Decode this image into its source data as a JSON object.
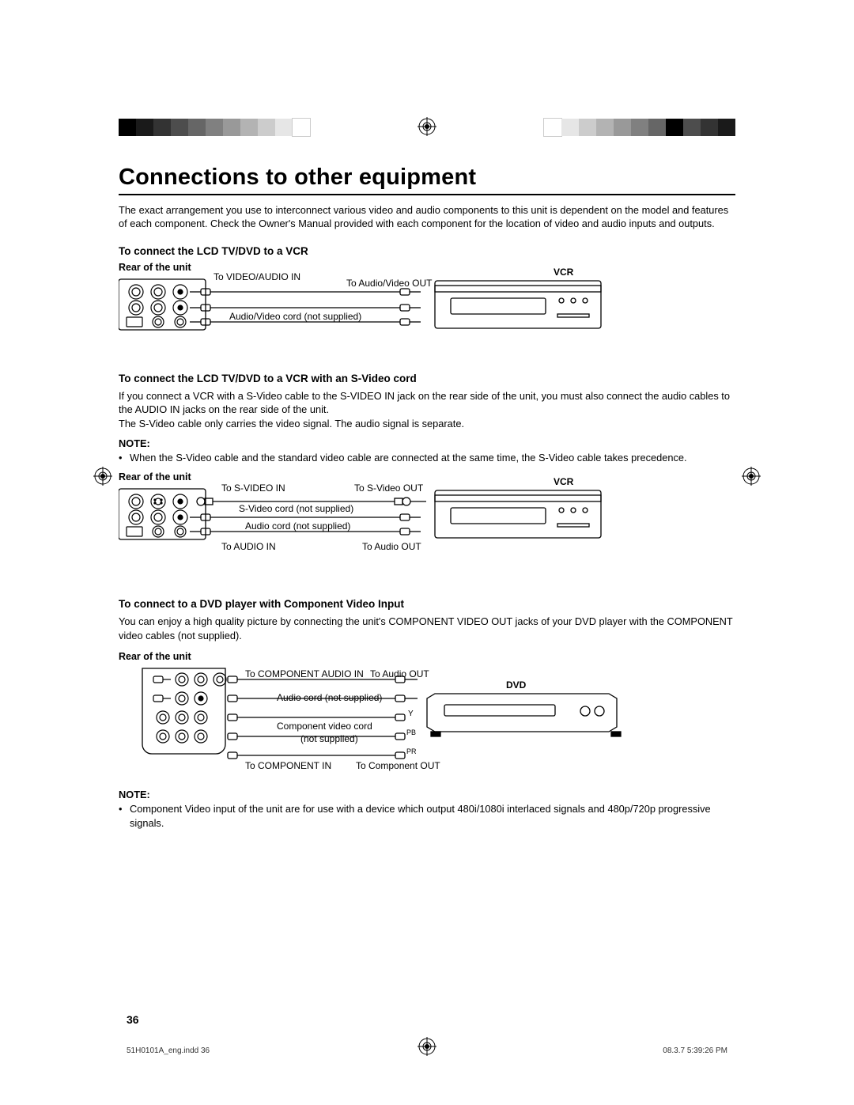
{
  "colorbar_left": [
    "#000000",
    "#1a1a1a",
    "#333333",
    "#4d4d4d",
    "#666666",
    "#808080",
    "#999999",
    "#b3b3b3",
    "#cccccc",
    "#e6e6e6",
    "#ffffff"
  ],
  "colorbar_right": [
    "#ffffff",
    "#e6e6e6",
    "#cccccc",
    "#b3b3b3",
    "#999999",
    "#808080",
    "#666666",
    "#000000",
    "#4d4d4d",
    "#333333",
    "#1a1a1a"
  ],
  "title": "Connections to other equipment",
  "intro": "The exact arrangement you use to interconnect various video and audio components to this unit is dependent on the model and features of each component. Check the Owner's Manual provided with each component for the location of video and audio inputs and outputs.",
  "section1": {
    "heading": "To connect the LCD TV/DVD to a VCR",
    "rear": "Rear of the unit",
    "labels": {
      "to_va_in": "To VIDEO/AUDIO IN",
      "to_av_out": "To Audio/Video OUT",
      "av_cord": "Audio/Video cord (not supplied)",
      "device": "VCR"
    }
  },
  "section2": {
    "heading": "To connect the LCD TV/DVD to a VCR with an S-Video cord",
    "para": "If you connect a VCR with a S-Video cable to the S-VIDEO IN jack on the rear side of the unit, you must also connect the audio cables to the AUDIO IN jacks on the rear side of the unit.\nThe S-Video cable only carries the video signal. The audio signal is separate.",
    "note_label": "NOTE:",
    "note": "When the S-Video cable and the standard video cable are connected at the same time, the S-Video cable takes precedence.",
    "rear": "Rear of the unit",
    "labels": {
      "to_svideo_in": "To S-VIDEO IN",
      "to_svideo_out": "To S-Video OUT",
      "svideo_cord": "S-Video cord (not supplied)",
      "audio_cord": "Audio cord (not supplied)",
      "to_audio_in": "To AUDIO IN",
      "to_audio_out": "To Audio OUT",
      "device": "VCR"
    }
  },
  "section3": {
    "heading": "To connect to a DVD player with Component Video Input",
    "para": "You can enjoy a high quality picture by connecting the unit's COMPONENT VIDEO OUT jacks of your DVD player with the COMPONENT video cables (not supplied).",
    "rear": "Rear of the unit",
    "labels": {
      "to_comp_audio_in": "To COMPONENT AUDIO IN",
      "to_audio_out": "To Audio OUT",
      "audio_cord": "Audio cord (not supplied)",
      "comp_cord": "Component video cord",
      "not_supplied": "(not supplied)",
      "to_comp_in": "To COMPONENT IN",
      "to_comp_out": "To Component OUT",
      "y": "Y",
      "pb": "PB",
      "pr": "PR",
      "device": "DVD"
    },
    "note_label": "NOTE:",
    "note": "Component Video input of the unit are for use with a device which output 480i/1080i interlaced signals and 480p/720p progressive signals."
  },
  "page_number": "36",
  "footer_left": "51H0101A_eng.indd   36",
  "footer_right": "08.3.7   5:39:26 PM"
}
